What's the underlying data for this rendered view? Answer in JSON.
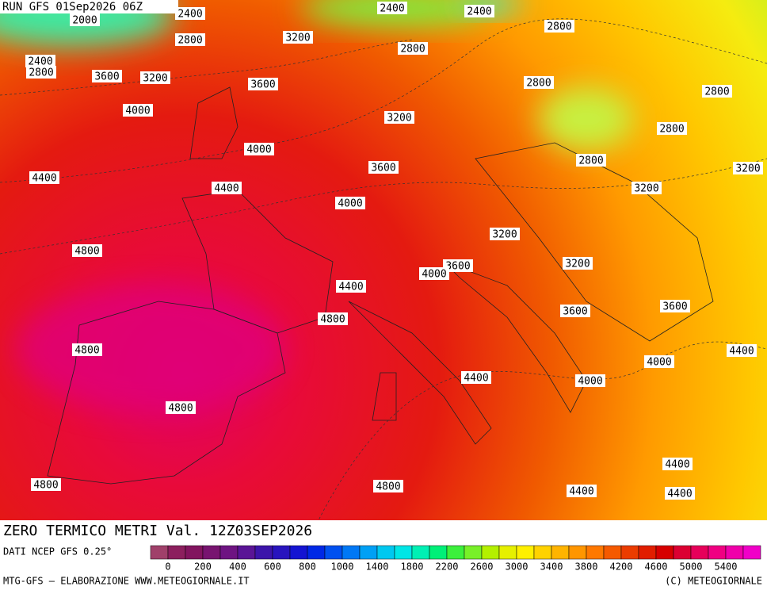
{
  "header": {
    "run": "RUN GFS 01Sep2026 06Z"
  },
  "contour_labels": [
    "2400",
    "2400",
    "2400",
    "2000",
    "2800",
    "3200",
    "2800",
    "2800",
    "2400",
    "2800",
    "3600",
    "3200",
    "3600",
    "2800",
    "2800",
    "4000",
    "3200",
    "2800",
    "4000",
    "3600",
    "2800",
    "3200",
    "4400",
    "4400",
    "4000",
    "3200",
    "3200",
    "4800",
    "3600",
    "4000",
    "3200",
    "4400",
    "3600",
    "3600",
    "4800",
    "4800",
    "4400",
    "4000",
    "4400",
    "4000",
    "4800",
    "4400",
    "4800",
    "4800",
    "4400",
    "4400"
  ],
  "title": "ZERO TERMICO METRI Val. 12Z03SEP2026",
  "source": "DATI NCEP GFS 0.25°",
  "legend": {
    "colors": [
      "#a0406a",
      "#8c1f5e",
      "#82145f",
      "#781470",
      "#6e1482",
      "#5a1496",
      "#3c14aa",
      "#2814be",
      "#1414d2",
      "#0028e6",
      "#0050f0",
      "#0078f5",
      "#00a0f5",
      "#00c8f0",
      "#00e6e6",
      "#00f0b4",
      "#00f078",
      "#3cf03c",
      "#78f028",
      "#b4f000",
      "#e6f000",
      "#fff000",
      "#ffd200",
      "#ffb400",
      "#ff9600",
      "#ff7800",
      "#f55a00",
      "#eb3c00",
      "#e11e00",
      "#d70000",
      "#dc0032",
      "#e6005a",
      "#f00082",
      "#f000aa",
      "#f000c8"
    ],
    "labels": [
      0,
      200,
      400,
      600,
      800,
      1000,
      1400,
      1800,
      2200,
      2600,
      3000,
      3400,
      3800,
      4200,
      4600,
      5000,
      5400
    ]
  },
  "footer": {
    "left": "MTG-GFS — ELABORAZIONE WWW.METEOGIORNALE.IT",
    "right": "(C) METEOGIORNALE"
  }
}
